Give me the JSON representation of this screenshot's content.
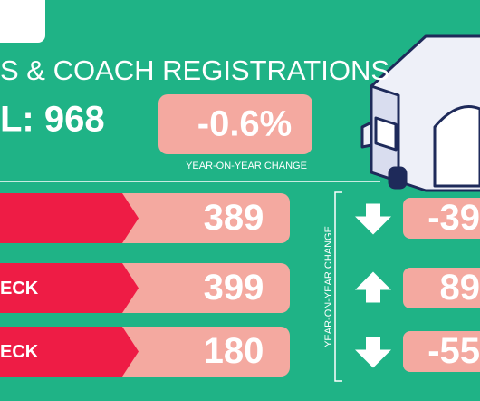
{
  "header": {
    "title": "S & COACH REGISTRATIONS",
    "total": "L: 968",
    "change": "-0.6%",
    "change_caption": "YEAR-ON-YEAR CHANGE"
  },
  "side_caption": "YEAR-ON-YEAR CHANGE",
  "rows": [
    {
      "value": "389",
      "change": "-39"
    },
    {
      "label": "ECK",
      "value": "399",
      "change": "89"
    },
    {
      "label": "ECK",
      "value": "180",
      "change": "-55"
    }
  ]
}
